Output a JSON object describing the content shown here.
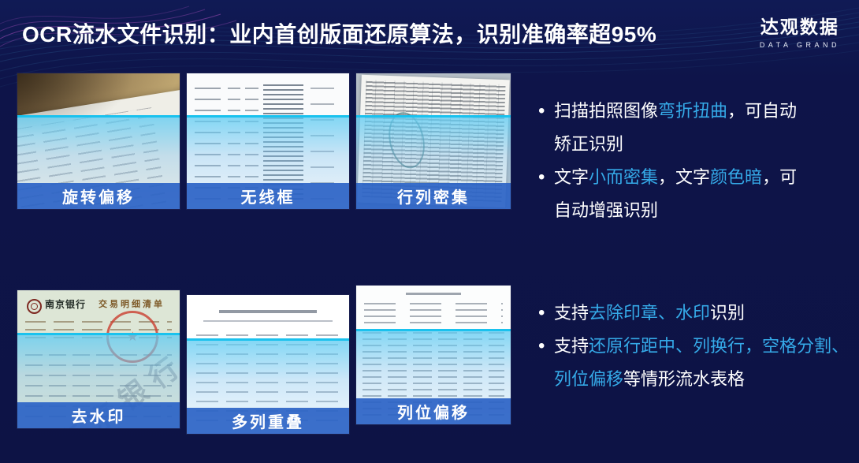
{
  "slide": {
    "title": "OCR流水文件识别：业内首创版面还原算法，识别准确率超95%",
    "logo": {
      "name": "达观数据",
      "subtitle": "DATA GRAND"
    }
  },
  "colors": {
    "background": "#0e1449",
    "highlight_blue": "#35aae8",
    "label_band_blue": "#2b63c6",
    "overlay_cyan": "#1ac2ee",
    "title_text": "#ffffff"
  },
  "thumbnails": [
    {
      "label": "旋转偏移"
    },
    {
      "label": "无线框"
    },
    {
      "label": "行列密集"
    },
    {
      "label": "去水印",
      "doc": {
        "bank_name": "南京银行",
        "doc_title": "交易明细清单",
        "watermark_text": "南京银行",
        "stamp": "red-round-stamp"
      }
    },
    {
      "label": "多列重叠"
    },
    {
      "label": "列位偏移"
    }
  ],
  "bullets_top": [
    {
      "lines": [
        [
          {
            "t": "扫描拍照图像"
          },
          {
            "t": "弯折扭曲",
            "h": true
          },
          {
            "t": "，可自动"
          }
        ],
        [
          {
            "t": "矫正识别"
          }
        ]
      ]
    },
    {
      "lines": [
        [
          {
            "t": "文字"
          },
          {
            "t": "小而密集",
            "h": true
          },
          {
            "t": "，文字"
          },
          {
            "t": "颜色暗",
            "h": true
          },
          {
            "t": "，可"
          }
        ],
        [
          {
            "t": "自动增强识别"
          }
        ]
      ]
    }
  ],
  "bullets_bottom": [
    {
      "lines": [
        [
          {
            "t": "支持"
          },
          {
            "t": "去除印章、水印",
            "h": true
          },
          {
            "t": "识别"
          }
        ]
      ]
    },
    {
      "lines": [
        [
          {
            "t": "支持"
          },
          {
            "t": "还原行距中、列换行，空格分割、",
            "h": true
          }
        ],
        [
          {
            "t": "列位偏移",
            "h": true
          },
          {
            "t": "等情形流水表格"
          }
        ]
      ]
    }
  ]
}
